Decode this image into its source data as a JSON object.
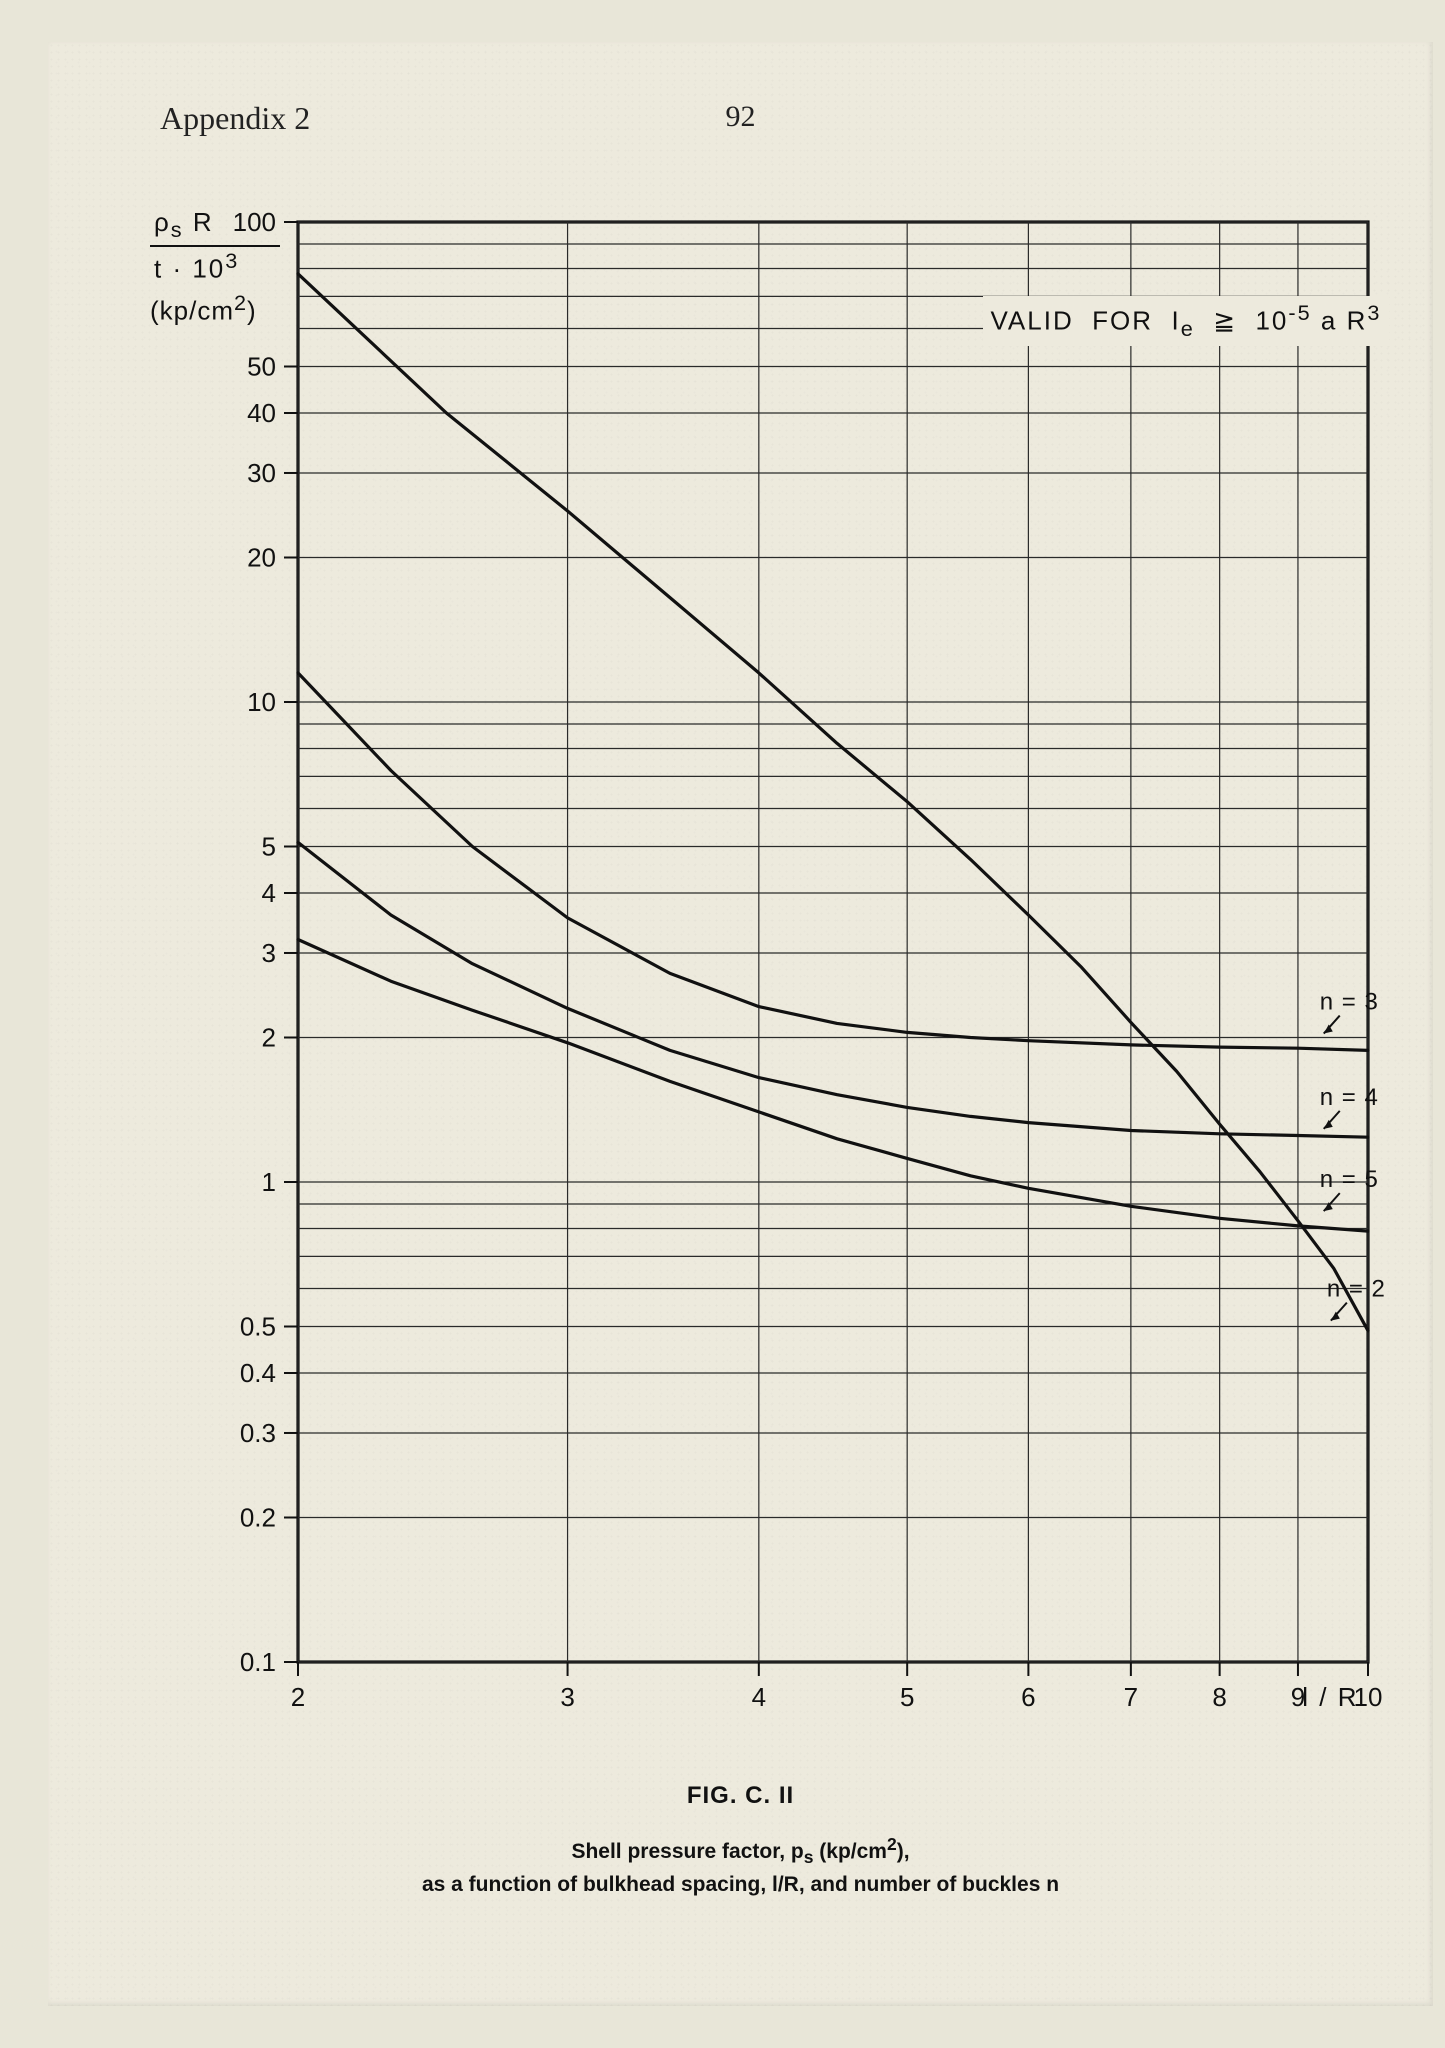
{
  "page": {
    "appendix_label": "Appendix 2",
    "page_number": "92"
  },
  "chart": {
    "type": "line-loglog",
    "background_color": "#edeaDD",
    "axis_color": "#111111",
    "grid_color": "#2a2a2a",
    "grid_stroke_width": 1.2,
    "curve_stroke_width": 3.2,
    "frame_stroke_width": 3.2,
    "font_family_sans": "Arial, Helvetica, sans-serif",
    "tick_fontsize": 26,
    "label_fontsize": 24,
    "x": {
      "label": "l / R",
      "min": 2,
      "max": 10,
      "ticks": [
        2,
        3,
        4,
        5,
        6,
        7,
        8,
        9,
        10
      ],
      "tick_labels": [
        "2",
        "3",
        "4",
        "5",
        "6",
        "7",
        "8",
        "9",
        "10"
      ]
    },
    "y": {
      "title_line1_html": "ρ<sub>s</sub> R",
      "title_line2_html": "t · 10<sup>3</sup>",
      "title_line3_html": "(kp/cm<sup>2</sup>)",
      "min": 0.1,
      "max": 100,
      "major_ticks": [
        0.1,
        1,
        10,
        100
      ],
      "labeled_ticks": [
        0.1,
        0.2,
        0.3,
        0.4,
        0.5,
        1,
        2,
        3,
        4,
        5,
        10,
        20,
        30,
        40,
        50,
        100
      ],
      "labeled_tick_labels": [
        "0.1",
        "0.2",
        "0.3",
        "0.4",
        "0.5",
        "1",
        "2",
        "3",
        "4",
        "5",
        "10",
        "20",
        "30",
        "40",
        "50",
        "100"
      ]
    },
    "annotation_box": {
      "text_html": "VALID&nbsp;&nbsp;FOR&nbsp;&nbsp;I<sub>e</sub>&nbsp;&nbsp;≧&nbsp;&nbsp;10<sup>-5</sup> a R<sup>3</sup>",
      "x_center": 7.7,
      "y_center": 58,
      "fontsize": 26
    },
    "series": [
      {
        "name": "n=2",
        "label": "n = 2",
        "label_at_x": 9.4,
        "label_at_y": 0.55,
        "points": [
          [
            2,
            78
          ],
          [
            2.5,
            40
          ],
          [
            3,
            25
          ],
          [
            3.5,
            16.5
          ],
          [
            4,
            11.5
          ],
          [
            4.5,
            8.2
          ],
          [
            5,
            6.2
          ],
          [
            5.5,
            4.7
          ],
          [
            6,
            3.6
          ],
          [
            6.5,
            2.8
          ],
          [
            7,
            2.15
          ],
          [
            7.5,
            1.7
          ],
          [
            8,
            1.32
          ],
          [
            8.5,
            1.05
          ],
          [
            9,
            0.83
          ],
          [
            9.5,
            0.66
          ],
          [
            10,
            0.49
          ]
        ]
      },
      {
        "name": "n=3",
        "label": "n = 3",
        "label_at_x": 9.3,
        "label_at_y": 2.18,
        "points": [
          [
            2,
            11.5
          ],
          [
            2.3,
            7.2
          ],
          [
            2.6,
            5.0
          ],
          [
            3,
            3.55
          ],
          [
            3.5,
            2.72
          ],
          [
            4,
            2.32
          ],
          [
            4.5,
            2.14
          ],
          [
            5,
            2.05
          ],
          [
            5.5,
            2.0
          ],
          [
            6,
            1.97
          ],
          [
            7,
            1.93
          ],
          [
            8,
            1.91
          ],
          [
            9,
            1.9
          ],
          [
            10,
            1.88
          ]
        ]
      },
      {
        "name": "n=4",
        "label": "n = 4",
        "label_at_x": 9.3,
        "label_at_y": 1.38,
        "points": [
          [
            2,
            5.1
          ],
          [
            2.3,
            3.6
          ],
          [
            2.6,
            2.85
          ],
          [
            3,
            2.3
          ],
          [
            3.5,
            1.88
          ],
          [
            4,
            1.65
          ],
          [
            4.5,
            1.52
          ],
          [
            5,
            1.43
          ],
          [
            5.5,
            1.37
          ],
          [
            6,
            1.33
          ],
          [
            7,
            1.28
          ],
          [
            8,
            1.26
          ],
          [
            9,
            1.25
          ],
          [
            10,
            1.24
          ]
        ]
      },
      {
        "name": "n=5",
        "label": "n = 5",
        "label_at_x": 9.3,
        "label_at_y": 0.93,
        "points": [
          [
            2,
            3.2
          ],
          [
            2.3,
            2.62
          ],
          [
            2.6,
            2.28
          ],
          [
            3,
            1.95
          ],
          [
            3.5,
            1.62
          ],
          [
            4,
            1.4
          ],
          [
            4.5,
            1.23
          ],
          [
            5,
            1.12
          ],
          [
            5.5,
            1.03
          ],
          [
            6,
            0.97
          ],
          [
            7,
            0.89
          ],
          [
            8,
            0.84
          ],
          [
            9,
            0.81
          ],
          [
            10,
            0.79
          ]
        ]
      }
    ]
  },
  "caption": {
    "figure_label": "FIG. C. II",
    "line1_html": "Shell pressure factor, p<sub>s</sub> (kp/cm<sup>2</sup>),",
    "line2": "as a function of bulkhead spacing, l/R, and number of buckles n"
  }
}
